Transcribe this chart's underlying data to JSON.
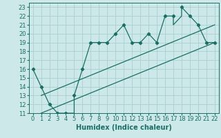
{
  "title": "",
  "xlabel": "Humidex (Indice chaleur)",
  "xlim": [
    -0.5,
    22.5
  ],
  "ylim": [
    11,
    23.5
  ],
  "xticks": [
    0,
    1,
    2,
    3,
    4,
    5,
    6,
    7,
    8,
    9,
    10,
    11,
    12,
    13,
    14,
    15,
    16,
    17,
    18,
    19,
    20,
    21,
    22
  ],
  "yticks": [
    11,
    12,
    13,
    14,
    15,
    16,
    17,
    18,
    19,
    20,
    21,
    22,
    23
  ],
  "bg_color": "#cce8e8",
  "grid_color": "#aacfcf",
  "line_color": "#1a6e64",
  "main_x": [
    0,
    1,
    2,
    3,
    4,
    5,
    5,
    6,
    6,
    7,
    8,
    9,
    10,
    11,
    12,
    13,
    14,
    15,
    16,
    17,
    17,
    18,
    18,
    19,
    20,
    21,
    22
  ],
  "main_y": [
    16,
    14,
    12,
    11,
    11,
    11,
    13,
    16,
    16,
    19,
    19,
    19,
    20,
    21,
    19,
    19,
    20,
    19,
    22,
    22,
    21,
    22,
    23,
    22,
    21,
    19,
    19
  ],
  "line1_x": [
    1,
    22
  ],
  "line1_y": [
    11,
    19
  ],
  "line2_x": [
    1,
    22
  ],
  "line2_y": [
    13,
    21
  ],
  "marker_x": [
    0,
    1,
    2,
    3,
    4,
    5,
    6,
    7,
    8,
    9,
    10,
    11,
    12,
    13,
    14,
    15,
    16,
    17,
    18,
    19,
    20,
    21,
    22
  ],
  "marker_y": [
    16,
    14,
    12,
    11,
    11,
    13,
    16,
    19,
    19,
    19,
    20,
    21,
    19,
    19,
    20,
    19,
    22,
    22,
    23,
    22,
    21,
    19,
    19
  ],
  "fontsize_xlabel": 7,
  "fontsize_tick": 6
}
